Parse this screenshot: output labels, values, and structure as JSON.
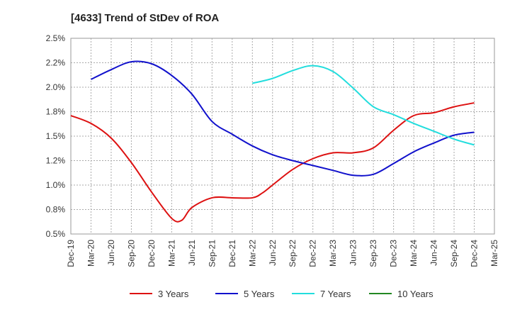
{
  "chart_data": {
    "type": "line",
    "title": "[4633]  Trend of StDev of ROA",
    "xlabel": "",
    "ylabel": "",
    "x_ticks": [
      "Dec-19",
      "Mar-20",
      "Jun-20",
      "Sep-20",
      "Dec-20",
      "Mar-21",
      "Jun-21",
      "Sep-21",
      "Dec-21",
      "Mar-22",
      "Jun-22",
      "Sep-22",
      "Dec-22",
      "Mar-23",
      "Jun-23",
      "Sep-23",
      "Dec-23",
      "Mar-24",
      "Jun-24",
      "Sep-24",
      "Dec-24",
      "Mar-25"
    ],
    "y_ticks": [
      "0.5%",
      "0.8%",
      "1.0%",
      "1.2%",
      "1.5%",
      "1.8%",
      "2.0%",
      "2.2%",
      "2.5%"
    ],
    "ylim": [
      0.5,
      2.5
    ],
    "grid": true,
    "legend_position": "bottom",
    "series": [
      {
        "name": "3 Years",
        "color": "#dd1111",
        "points": [
          [
            0,
            1.71
          ],
          [
            1,
            1.63
          ],
          [
            2,
            1.48
          ],
          [
            3,
            1.23
          ],
          [
            4,
            0.93
          ],
          [
            5,
            0.66
          ],
          [
            5.5,
            0.64
          ],
          [
            6,
            0.77
          ],
          [
            7,
            0.87
          ],
          [
            8,
            0.87
          ],
          [
            9,
            0.87
          ],
          [
            9.5,
            0.92
          ],
          [
            10,
            1.0
          ],
          [
            11,
            1.16
          ],
          [
            12,
            1.27
          ],
          [
            13,
            1.33
          ],
          [
            14,
            1.33
          ],
          [
            15,
            1.38
          ],
          [
            16,
            1.56
          ],
          [
            17,
            1.71
          ],
          [
            18,
            1.74
          ],
          [
            19,
            1.8
          ],
          [
            20,
            1.84
          ]
        ]
      },
      {
        "name": "5 Years",
        "color": "#1111cc",
        "points": [
          [
            1,
            2.08
          ],
          [
            2,
            2.18
          ],
          [
            3,
            2.26
          ],
          [
            4,
            2.24
          ],
          [
            5,
            2.12
          ],
          [
            6,
            1.93
          ],
          [
            7,
            1.65
          ],
          [
            8,
            1.52
          ],
          [
            9,
            1.4
          ],
          [
            10,
            1.31
          ],
          [
            11,
            1.25
          ],
          [
            12,
            1.2
          ],
          [
            13,
            1.15
          ],
          [
            14,
            1.1
          ],
          [
            15,
            1.11
          ],
          [
            16,
            1.22
          ],
          [
            17,
            1.34
          ],
          [
            18,
            1.43
          ],
          [
            19,
            1.51
          ],
          [
            20,
            1.54
          ]
        ]
      },
      {
        "name": "7 Years",
        "color": "#22dddd",
        "points": [
          [
            9,
            2.04
          ],
          [
            10,
            2.09
          ],
          [
            11,
            2.17
          ],
          [
            12,
            2.22
          ],
          [
            13,
            2.16
          ],
          [
            14,
            1.99
          ],
          [
            15,
            1.8
          ],
          [
            16,
            1.72
          ],
          [
            17,
            1.63
          ],
          [
            18,
            1.55
          ],
          [
            19,
            1.47
          ],
          [
            20,
            1.41
          ]
        ]
      },
      {
        "name": "10 Years",
        "color": "#228822",
        "points": []
      }
    ]
  }
}
